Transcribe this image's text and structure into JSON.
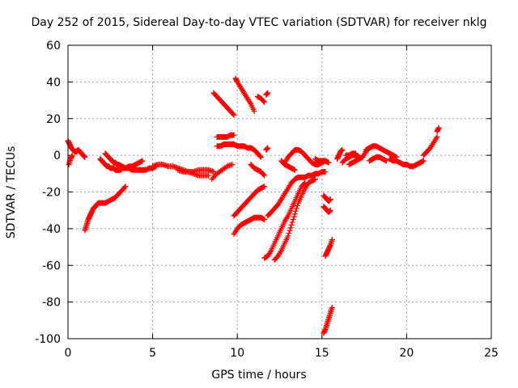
{
  "chart_data": {
    "type": "scatter",
    "title": "Day 252 of 2015, Sidereal Day-to-day VTEC variation (SDTVAR) for receiver nklg",
    "xlabel": "GPS time / hours",
    "ylabel": "SDTVAR / TECUs",
    "xlim": [
      0,
      25
    ],
    "ylim": [
      -100,
      60
    ],
    "xticks": [
      0,
      5,
      10,
      15,
      20,
      25
    ],
    "yticks": [
      -100,
      -80,
      -60,
      -40,
      -20,
      0,
      20,
      40,
      60
    ],
    "grid": true,
    "marker": "+",
    "color": "#ff0000",
    "series": [
      {
        "x": [
          0.0,
          0.1,
          0.2,
          0.3,
          0.4,
          0.5,
          0.6,
          0.7,
          0.8,
          0.9,
          1.0
        ],
        "y": [
          8,
          6,
          4,
          3,
          2,
          2,
          3,
          2,
          1,
          0,
          -1
        ]
      },
      {
        "x": [
          0.05,
          0.15,
          0.25
        ],
        "y": [
          -5,
          -2,
          0
        ]
      },
      {
        "x": [
          1.0,
          1.1,
          1.2,
          1.3,
          1.4,
          1.5,
          1.6,
          1.7,
          1.8,
          2.0,
          2.2,
          2.4,
          2.6,
          2.8,
          3.0,
          3.2,
          3.4
        ],
        "y": [
          -41,
          -38,
          -35,
          -33,
          -31,
          -29,
          -28,
          -27,
          -26,
          -26,
          -26,
          -25,
          -24,
          -23,
          -21,
          -19,
          -17
        ]
      },
      {
        "x": [
          1.9,
          2.0,
          2.1,
          2.2,
          2.3,
          2.4,
          2.5,
          2.6,
          2.7,
          2.8,
          2.9,
          3.0,
          3.1,
          3.2,
          3.3,
          3.4,
          3.6,
          3.8,
          4.0,
          4.2,
          4.4
        ],
        "y": [
          -2,
          -3,
          -4,
          -5,
          -6,
          -6,
          -7,
          -7,
          -7,
          -8,
          -8,
          -8,
          -8,
          -7,
          -7,
          -7,
          -6,
          -6,
          -5,
          -4,
          -3
        ]
      },
      {
        "x": [
          2.2,
          2.3,
          2.4,
          2.5,
          2.6,
          2.7,
          2.8,
          2.9,
          3.0,
          3.2,
          3.4,
          3.6,
          3.8,
          4.0,
          4.2,
          4.4,
          4.6,
          4.8,
          5.0,
          5.2
        ],
        "y": [
          1,
          0,
          -1,
          -2,
          -3,
          -4,
          -4,
          -5,
          -5,
          -6,
          -7,
          -7,
          -8,
          -8,
          -8,
          -8,
          -8,
          -7,
          -7,
          -6
        ]
      },
      {
        "x": [
          5.0,
          5.3,
          5.6,
          5.9,
          6.2,
          6.5,
          6.8,
          7.1,
          7.4,
          7.7,
          8.0,
          8.3
        ],
        "y": [
          -6,
          -5,
          -5,
          -6,
          -6,
          -7,
          -8,
          -9,
          -10,
          -11,
          -11,
          -11
        ]
      },
      {
        "x": [
          6.5,
          6.8,
          7.1,
          7.4,
          7.7,
          8.0,
          8.3,
          8.6
        ],
        "y": [
          -8,
          -9,
          -9,
          -9,
          -8,
          -8,
          -8,
          -9
        ]
      },
      {
        "x": [
          8.5,
          8.8,
          9.1,
          9.4,
          9.7
        ],
        "y": [
          -13,
          -10,
          -8,
          -6,
          -5
        ]
      },
      {
        "x": [
          8.6,
          8.8,
          9.0,
          9.2,
          9.4,
          9.6,
          9.8
        ],
        "y": [
          34,
          32,
          30,
          28,
          26,
          24,
          22
        ]
      },
      {
        "x": [
          8.8,
          9.0,
          9.2,
          9.4,
          9.6,
          9.8
        ],
        "y": [
          10,
          10,
          10,
          10,
          11,
          11
        ]
      },
      {
        "x": [
          8.8,
          9.0,
          9.2,
          9.4,
          9.6,
          9.8,
          10.0,
          10.2,
          10.4,
          10.6,
          10.8,
          11.0,
          11.2,
          11.4
        ],
        "y": [
          5,
          5,
          6,
          6,
          6,
          6,
          5,
          5,
          5,
          4,
          4,
          3,
          1,
          -1
        ]
      },
      {
        "x": [
          9.9,
          10.0,
          10.2,
          10.4,
          10.6,
          10.8,
          11.0
        ],
        "y": [
          42,
          40,
          37,
          34,
          31,
          28,
          24
        ]
      },
      {
        "x": [
          11.2,
          11.4,
          11.6
        ],
        "y": [
          32,
          31,
          29
        ]
      },
      {
        "x": [
          11.7,
          11.8
        ],
        "y": [
          33,
          34
        ]
      },
      {
        "x": [
          10.8,
          11.0,
          11.2,
          11.4,
          11.6
        ],
        "y": [
          -5,
          -7,
          -8,
          -9,
          -11
        ]
      },
      {
        "x": [
          9.8,
          10.0,
          10.2,
          10.4,
          10.6,
          10.8,
          11.0,
          11.2,
          11.4,
          11.6
        ],
        "y": [
          -33,
          -31,
          -29,
          -27,
          -25,
          -23,
          -21,
          -19,
          -18,
          -17
        ]
      },
      {
        "x": [
          9.8,
          10.0,
          10.2,
          10.4,
          10.6,
          10.8,
          11.0,
          11.2,
          11.4,
          11.6
        ],
        "y": [
          -43,
          -40,
          -38,
          -37,
          -36,
          -35,
          -34,
          -34,
          -34,
          -35
        ]
      },
      {
        "x": [
          11.7,
          11.8
        ],
        "y": [
          3,
          4
        ]
      },
      {
        "x": [
          11.6,
          11.8,
          12.0,
          12.2,
          12.4,
          12.6,
          12.8,
          13.0,
          13.2,
          13.4,
          13.6,
          13.8,
          14.0
        ],
        "y": [
          -56,
          -55,
          -52,
          -48,
          -44,
          -40,
          -36,
          -33,
          -29,
          -25,
          -21,
          -17,
          -15
        ]
      },
      {
        "x": [
          12.2,
          12.4,
          12.6,
          12.8,
          13.0,
          13.2,
          13.4,
          13.6,
          13.8,
          14.0,
          14.2,
          14.4,
          14.6
        ],
        "y": [
          -57,
          -55,
          -52,
          -48,
          -44,
          -38,
          -32,
          -26,
          -22,
          -18,
          -15,
          -14,
          -13
        ]
      },
      {
        "x": [
          11.8,
          12.0,
          12.2,
          12.4,
          12.6,
          12.8,
          13.0,
          13.2,
          13.4,
          13.6,
          13.8,
          14.0,
          14.2,
          14.4,
          14.6,
          14.8,
          15.0,
          15.2
        ],
        "y": [
          -33,
          -31,
          -29,
          -27,
          -24,
          -21,
          -18,
          -15,
          -13,
          -12,
          -12,
          -12,
          -11,
          -11,
          -10,
          -10,
          -9,
          -9
        ]
      },
      {
        "x": [
          12.8,
          13.0,
          13.2,
          13.4,
          13.6,
          13.8,
          14.0,
          14.2,
          14.4,
          14.6,
          14.8,
          15.0,
          15.2
        ],
        "y": [
          -4,
          -1,
          1,
          3,
          3,
          2,
          0,
          -2,
          -4,
          -5,
          -5,
          -4,
          -3
        ]
      },
      {
        "x": [
          12.6,
          12.8,
          13.0,
          13.2,
          13.4
        ],
        "y": [
          -3,
          -5,
          -6,
          -7,
          -8
        ]
      },
      {
        "x": [
          14.6,
          14.8,
          15.0,
          15.2,
          15.4
        ],
        "y": [
          -2,
          -3,
          -3,
          -3,
          -4
        ]
      },
      {
        "x": [
          15.1,
          15.2,
          15.3,
          15.4,
          15.5
        ],
        "y": [
          -22,
          -23,
          -24,
          -25,
          -24
        ]
      },
      {
        "x": [
          15.1,
          15.2,
          15.3,
          15.4,
          15.5
        ],
        "y": [
          -28,
          -29,
          -30,
          -31,
          -30
        ]
      },
      {
        "x": [
          15.2,
          15.3,
          15.4,
          15.5,
          15.6
        ],
        "y": [
          -55,
          -53,
          -51,
          -49,
          -46
        ]
      },
      {
        "x": [
          15.1,
          15.2,
          15.3,
          15.4,
          15.5,
          15.6
        ],
        "y": [
          -97,
          -95,
          -92,
          -89,
          -86,
          -83
        ]
      },
      {
        "x": [
          15.9,
          16.0,
          16.1,
          16.2
        ],
        "y": [
          -2,
          0,
          2,
          3
        ]
      },
      {
        "x": [
          16.2,
          16.4,
          16.6,
          16.8,
          17.0,
          17.2
        ],
        "y": [
          -4,
          -2,
          -1,
          0,
          0,
          -1
        ]
      },
      {
        "x": [
          16.4,
          16.6,
          16.8,
          17.0
        ],
        "y": [
          0,
          0,
          1,
          1
        ]
      },
      {
        "x": [
          16.6,
          16.8,
          17.0,
          17.2,
          17.4,
          17.6,
          17.8
        ],
        "y": [
          -5,
          -4,
          -3,
          -2,
          -1,
          2,
          4
        ]
      },
      {
        "x": [
          17.6,
          17.8,
          18.0,
          18.2,
          18.4,
          18.6,
          18.8,
          19.0,
          19.2,
          19.4
        ],
        "y": [
          3,
          4,
          5,
          5,
          4,
          3,
          2,
          1,
          0,
          -1
        ]
      },
      {
        "x": [
          17.8,
          18.0,
          18.2,
          18.4,
          18.6,
          18.8
        ],
        "y": [
          -3,
          -2,
          -1,
          -1,
          -2,
          -3
        ]
      },
      {
        "x": [
          19.0,
          19.2,
          19.4,
          19.6,
          19.8,
          20.0,
          20.2,
          20.4,
          20.6,
          20.8,
          21.0
        ],
        "y": [
          -2,
          -3,
          -3,
          -4,
          -5,
          -5,
          -6,
          -6,
          -5,
          -4,
          -3
        ]
      },
      {
        "x": [
          21.0,
          21.2,
          21.4,
          21.6,
          21.8
        ],
        "y": [
          0,
          2,
          4,
          7,
          10
        ]
      },
      {
        "x": [
          21.8,
          21.9
        ],
        "y": [
          13,
          15
        ]
      }
    ]
  }
}
